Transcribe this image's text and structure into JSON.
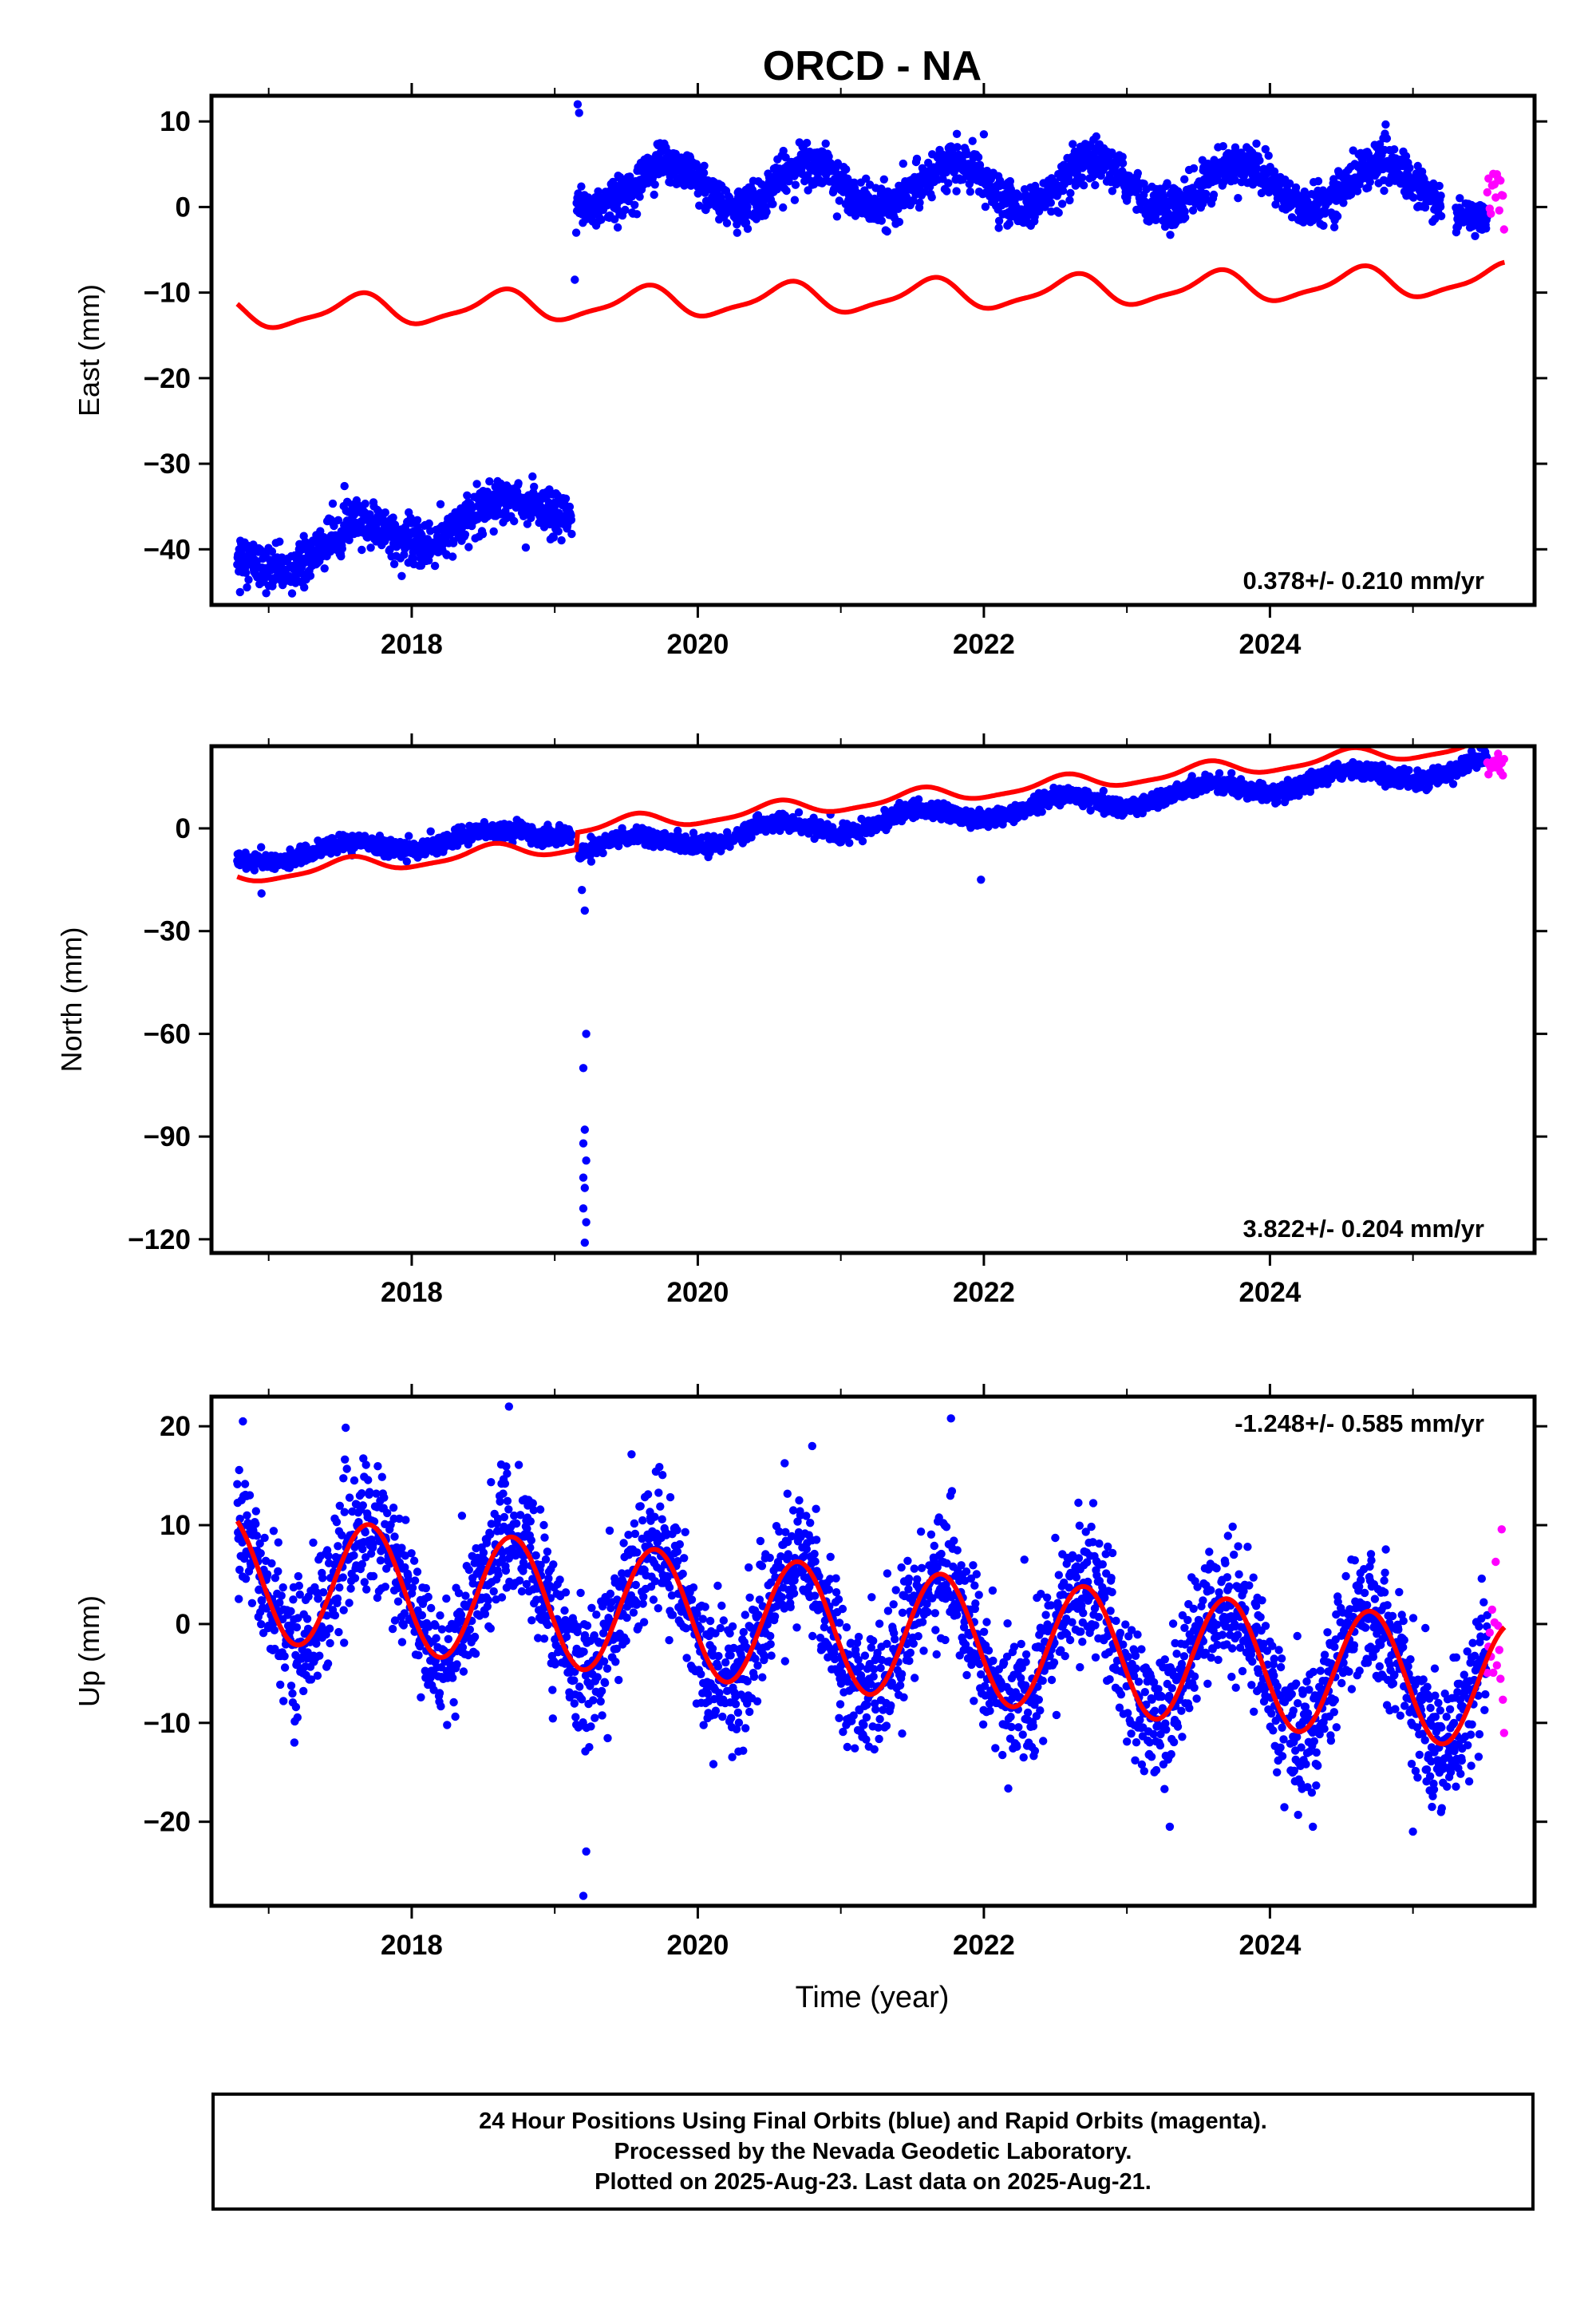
{
  "title": "ORCD - NA",
  "colors": {
    "final": "#0000ff",
    "rapid": "#ff00ff",
    "model": "#ff0000",
    "frame": "#000000"
  },
  "xaxis": {
    "label": "Time (year)",
    "range": [
      2016.6,
      2025.85
    ],
    "ticks": [
      2018,
      2020,
      2022,
      2024
    ],
    "tick_labels": [
      "2018",
      "2020",
      "2022",
      "2024"
    ]
  },
  "chart_data": [
    {
      "type": "scatter",
      "component": "East",
      "ylabel": "East (mm)",
      "ylim": [
        -46.5,
        13
      ],
      "yticks": [
        10,
        0,
        -10,
        -20,
        -30,
        -40
      ],
      "ytick_labels": [
        "10",
        "0",
        "−10",
        "−20",
        "−30",
        "−40"
      ],
      "rate": "0.378+/- 0.210 mm/yr",
      "series": [
        {
          "kind": "final",
          "segments": [
            {
              "x_start": 2016.78,
              "x_end": 2019.12,
              "base": -41.5,
              "trend": 3.0,
              "amp": 2.0,
              "phase": 0.62,
              "noise": 1.3
            },
            {
              "x_start": 2019.15,
              "x_end": 2025.2,
              "base": 2.5,
              "trend": 0.0,
              "amp": 2.6,
              "phase": 0.78,
              "noise": 1.2
            },
            {
              "x_start": 2025.3,
              "x_end": 2025.52,
              "base": -1.0,
              "trend": 0.0,
              "amp": 0.5,
              "phase": 0.0,
              "noise": 1.0
            }
          ],
          "outliers": [
            {
              "x": 2019.16,
              "y": 12
            },
            {
              "x": 2019.17,
              "y": 11
            },
            {
              "x": 2019.14,
              "y": -8.5
            },
            {
              "x": 2019.15,
              "y": -3
            },
            {
              "x": 2016.8,
              "y": -45
            },
            {
              "x": 2022.0,
              "y": 8.5
            }
          ]
        },
        {
          "kind": "rapid",
          "x_start": 2025.52,
          "x_end": 2025.64,
          "base": 2.0,
          "noise": 2.0
        },
        {
          "kind": "model",
          "x_start": 2016.78,
          "x_end": 2025.64,
          "base": -12.5,
          "trend": 0.45,
          "amp1": 1.7,
          "phase1": 0.62,
          "amp2": 0.5,
          "phase2": 0.2
        }
      ]
    },
    {
      "type": "scatter",
      "component": "North",
      "ylabel": "North (mm)",
      "ylim": [
        -124,
        24
      ],
      "yticks": [
        0,
        -30,
        -60,
        -90,
        -120
      ],
      "ytick_labels": [
        "0",
        "−30",
        "−60",
        "−90",
        "−120"
      ],
      "rate": "3.822+/- 0.204 mm/yr",
      "series": [
        {
          "kind": "final",
          "segments": [
            {
              "x_start": 2016.78,
              "x_end": 2019.12,
              "base": -9,
              "trend": 3.8,
              "amp": 1.8,
              "phase": 0.55,
              "noise": 1.2
            },
            {
              "x_start": 2019.17,
              "x_end": 2025.52,
              "base": -6,
              "trend": 3.82,
              "amp": 2.5,
              "phase": 0.55,
              "noise": 1.2
            }
          ],
          "outliers": [
            {
              "x": 2019.19,
              "y": -18
            },
            {
              "x": 2019.21,
              "y": -24
            },
            {
              "x": 2019.22,
              "y": -60
            },
            {
              "x": 2019.2,
              "y": -70
            },
            {
              "x": 2019.21,
              "y": -88
            },
            {
              "x": 2019.2,
              "y": -92
            },
            {
              "x": 2019.22,
              "y": -97
            },
            {
              "x": 2019.2,
              "y": -102
            },
            {
              "x": 2019.21,
              "y": -105
            },
            {
              "x": 2019.2,
              "y": -111
            },
            {
              "x": 2019.22,
              "y": -115
            },
            {
              "x": 2019.21,
              "y": -121
            },
            {
              "x": 2016.95,
              "y": -19
            },
            {
              "x": 2021.98,
              "y": -15
            }
          ]
        },
        {
          "kind": "rapid",
          "x_start": 2025.52,
          "x_end": 2025.64,
          "base": 18,
          "noise": 1.5
        },
        {
          "kind": "model",
          "x_start": 2016.78,
          "x_end": 2025.64,
          "base": -9,
          "trend": 3.82,
          "amp1": 2.2,
          "phase1": 0.55,
          "amp2": 0.6,
          "phase2": 0.1,
          "offset_before_2019.15": -5
        }
      ]
    },
    {
      "type": "scatter",
      "component": "Up",
      "ylabel": "Up (mm)",
      "ylim": [
        -28.5,
        23
      ],
      "yticks": [
        20,
        10,
        0,
        -10,
        -20
      ],
      "ytick_labels": [
        "20",
        "10",
        "0",
        "−10",
        "−20"
      ],
      "rate": "-1.248+/- 0.585 mm/yr",
      "series": [
        {
          "kind": "final",
          "segments": [
            {
              "x_start": 2016.78,
              "x_end": 2025.52,
              "base": 4.8,
              "trend": -1.25,
              "amp": 6.4,
              "phase": 0.7,
              "noise": 3.3
            }
          ],
          "outliers": [
            {
              "x": 2016.82,
              "y": 20.5
            },
            {
              "x": 2018.68,
              "y": 22
            },
            {
              "x": 2021.77,
              "y": 20.8
            },
            {
              "x": 2020.8,
              "y": 18
            },
            {
              "x": 2019.2,
              "y": -27.5
            },
            {
              "x": 2019.22,
              "y": -23
            },
            {
              "x": 2023.3,
              "y": -20.5
            },
            {
              "x": 2024.3,
              "y": -20.5
            },
            {
              "x": 2025.0,
              "y": -21
            }
          ]
        },
        {
          "kind": "rapid",
          "x_start": 2025.52,
          "x_end": 2025.64,
          "base": -3,
          "noise": 4.5
        },
        {
          "kind": "model",
          "x_start": 2016.78,
          "x_end": 2025.64,
          "base": 4.8,
          "trend": -1.25,
          "amp1": 6.4,
          "phase1": 0.7,
          "amp2": 0.0,
          "phase2": 0.0
        }
      ]
    }
  ],
  "footer": {
    "line1": "24 Hour Positions Using Final Orbits (blue) and Rapid Orbits (magenta).",
    "line2": "Processed by the Nevada Geodetic Laboratory.",
    "line3": "Plotted on 2025-Aug-23. Last data on 2025-Aug-21."
  }
}
